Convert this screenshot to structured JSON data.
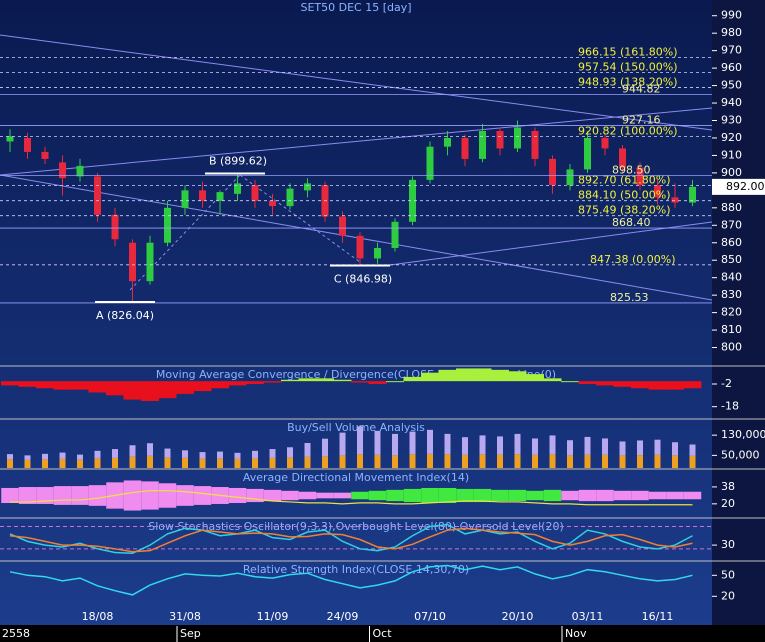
{
  "chart_data": [
    {
      "type": "candlestick",
      "title": "SET50 DEC 15   [day]",
      "categories": [
        "2558",
        null,
        null,
        null,
        null,
        "18/08",
        null,
        null,
        null,
        null,
        "31/08",
        null,
        null,
        null,
        null,
        "11/09",
        null,
        null,
        null,
        "24/09",
        null,
        null,
        null,
        null,
        "07/10",
        null,
        null,
        null,
        null,
        "20/10",
        null,
        null,
        null,
        "03/11",
        null,
        null,
        null,
        "16/11",
        null,
        null
      ],
      "months": [
        null,
        null,
        null,
        null,
        null,
        null,
        null,
        null,
        null,
        null,
        "Sep",
        null,
        null,
        null,
        null,
        null,
        null,
        null,
        null,
        null,
        null,
        "Oct",
        null,
        null,
        null,
        null,
        null,
        null,
        null,
        null,
        null,
        null,
        "Nov",
        null,
        null,
        null,
        null,
        null,
        null,
        null
      ],
      "open": [
        918,
        920,
        912,
        906,
        898,
        898,
        876,
        860,
        838,
        860,
        880,
        890,
        884,
        888,
        893,
        884,
        881,
        890,
        893,
        875,
        864,
        851,
        857,
        872,
        896,
        915,
        920,
        908,
        924,
        914,
        924,
        908,
        893,
        902,
        920,
        914,
        903,
        893,
        886,
        883
      ],
      "high": [
        925,
        923,
        915,
        910,
        908,
        900,
        880,
        862,
        864,
        884,
        893,
        895,
        890,
        900,
        896,
        888,
        894,
        897,
        895,
        878,
        866,
        860,
        874,
        898,
        918,
        924,
        922,
        928,
        926,
        930,
        926,
        910,
        905,
        924,
        922,
        916,
        906,
        896,
        894,
        896
      ],
      "low": [
        912,
        908,
        905,
        887,
        895,
        872,
        858,
        826,
        836,
        858,
        876,
        880,
        876,
        884,
        880,
        876,
        879,
        886,
        872,
        860,
        847,
        848,
        855,
        870,
        894,
        910,
        904,
        906,
        910,
        912,
        904,
        888,
        890,
        900,
        910,
        900,
        890,
        882,
        880,
        881
      ],
      "close": [
        921,
        912,
        908,
        897,
        904,
        876,
        862,
        838,
        860,
        880,
        890,
        884,
        889,
        894,
        884,
        881,
        891,
        894,
        875,
        864,
        851,
        857,
        872,
        896,
        915,
        920,
        908,
        924,
        914,
        926,
        908,
        893,
        902,
        920,
        914,
        903,
        893,
        886,
        883,
        892
      ],
      "up_color": "#2ecc40",
      "down_color": "#e8283c",
      "ylim": [
        790,
        999
      ],
      "yticks": [
        800,
        810,
        820,
        830,
        840,
        850,
        860,
        870,
        880,
        890,
        900,
        910,
        920,
        930,
        940,
        950,
        960,
        970,
        980,
        990
      ],
      "fibonacci": [
        {
          "value": 966.15,
          "label": "966.15 (161.80%)"
        },
        {
          "value": 957.54,
          "label": "957.54 (150.00%)"
        },
        {
          "value": 948.93,
          "label": "948.93 (138.20%)"
        },
        {
          "value": 920.82,
          "label": "920.82 (100.00%)"
        },
        {
          "value": 892.7,
          "label": "892.70 (61.80%)"
        },
        {
          "value": 884.1,
          "label": "884.10 (50.00%)"
        },
        {
          "value": 875.49,
          "label": "875.49 (38.20%)"
        },
        {
          "value": 847.38,
          "label": "847.38 (0.00%)"
        }
      ],
      "lines": [
        {
          "value": 944.82,
          "label": "944.82"
        },
        {
          "value": 927.16,
          "label": "927.16"
        },
        {
          "value": 898.5,
          "label": "898.50"
        },
        {
          "value": 868.4,
          "label": "868.40"
        },
        {
          "value": 825.53,
          "label": "825.53"
        }
      ],
      "pivots": [
        {
          "value": 826.04,
          "label": "A (826.04)"
        },
        {
          "value": 899.62,
          "label": "B (899.62)"
        },
        {
          "value": 846.98,
          "label": "C (846.98)"
        }
      ],
      "last_price": {
        "value": 892,
        "label": "892.00"
      }
    },
    {
      "type": "bar",
      "title": "Moving Average Convergence / Divergence(CLOSE,26,12,9),Base Line(0)",
      "values": [
        -3,
        -4,
        -5,
        -6,
        -6,
        -8,
        -10,
        -13,
        -14,
        -12,
        -9,
        -7,
        -5,
        -3,
        -2,
        -1,
        1,
        2,
        2,
        1,
        -1,
        -2,
        0,
        3,
        6,
        8,
        9,
        9,
        8,
        7,
        5,
        2,
        0,
        -2,
        -3,
        -4,
        -5,
        -6,
        -6,
        -5
      ],
      "colors": [
        "#a8f03c",
        "#e8101c"
      ],
      "ylim": [
        -26,
        10
      ],
      "yticks": [
        -2,
        -18
      ]
    },
    {
      "type": "stacked_bar",
      "title": "Buy/Sell Volume Analysis",
      "series": [
        {
          "color": "#f0a020",
          "values": [
            35000,
            32000,
            34000,
            36000,
            33000,
            38000,
            40000,
            45000,
            48000,
            42000,
            40000,
            38000,
            37000,
            36000,
            38000,
            40000,
            42000,
            44000,
            46000,
            50000,
            55000,
            52000,
            50000,
            54000,
            56000,
            55000,
            52000,
            54000,
            53000,
            55000,
            52000,
            54000,
            50000,
            53000,
            52000,
            50000,
            51000,
            52000,
            50000,
            48000
          ]
        },
        {
          "color": "#b8a8f0",
          "values": [
            20000,
            18000,
            22000,
            25000,
            20000,
            30000,
            35000,
            45000,
            50000,
            35000,
            30000,
            25000,
            28000,
            24000,
            30000,
            35000,
            40000,
            55000,
            70000,
            90000,
            110000,
            95000,
            85000,
            90000,
            95000,
            80000,
            70000,
            75000,
            72000,
            80000,
            65000,
            75000,
            60000,
            70000,
            65000,
            55000,
            58000,
            60000,
            52000,
            45000
          ]
        }
      ],
      "ylim": [
        0,
        190000
      ],
      "yticks": [
        {
          "value": 130000,
          "label": "130,000"
        },
        {
          "value": 50000,
          "label": "50,000"
        }
      ]
    },
    {
      "type": "adx",
      "title": "Average Directional Movement Index(14)",
      "values": [
        22,
        22,
        23,
        24,
        24,
        26,
        29,
        32,
        34,
        34,
        33,
        31,
        29,
        27,
        25,
        23,
        22,
        21,
        21,
        20,
        21,
        21,
        20,
        20,
        21,
        22,
        23,
        23,
        22,
        22,
        21,
        20,
        20,
        19,
        19,
        19,
        19,
        19,
        19,
        19
      ],
      "spread": [
        8,
        9,
        9,
        10,
        10,
        11,
        14,
        16,
        15,
        13,
        11,
        10,
        9,
        8,
        7,
        6,
        5,
        4,
        3,
        3,
        -4,
        -5,
        -6,
        -7,
        -8,
        -8,
        -7,
        -7,
        -6,
        -6,
        -5,
        -6,
        5,
        6,
        6,
        5,
        5,
        4,
        4,
        4
      ],
      "color": "#f0e040",
      "spread_colors": [
        "#f08cf0",
        "#40e840"
      ],
      "ylim": [
        6,
        56
      ],
      "yticks": [
        38,
        20
      ]
    },
    {
      "type": "line",
      "title": "Slow Stochastics Oscillator(9,3,3),Overbought Level(80),Oversold Level(20)",
      "series": [
        {
          "color": "#30d0e0",
          "values": [
            60,
            40,
            30,
            25,
            35,
            20,
            10,
            8,
            30,
            60,
            75,
            70,
            55,
            60,
            70,
            50,
            45,
            65,
            70,
            40,
            20,
            15,
            25,
            55,
            80,
            85,
            60,
            70,
            60,
            65,
            40,
            20,
            35,
            70,
            60,
            40,
            25,
            20,
            30,
            55
          ]
        },
        {
          "color": "#f08030",
          "values": [
            55,
            50,
            40,
            30,
            30,
            27,
            20,
            12,
            15,
            35,
            55,
            70,
            65,
            60,
            62,
            60,
            52,
            53,
            60,
            58,
            45,
            25,
            20,
            32,
            52,
            70,
            75,
            70,
            65,
            62,
            58,
            40,
            30,
            40,
            55,
            58,
            45,
            30,
            25,
            35
          ]
        }
      ],
      "levels": [
        80,
        20
      ],
      "ylim": [
        -10,
        100
      ],
      "yticks": [
        30
      ]
    },
    {
      "type": "line",
      "title": "Relative Strength Index(CLOSE,14,30,70)",
      "series": [
        {
          "color": "#30d8f0",
          "values": [
            55,
            50,
            48,
            42,
            46,
            35,
            28,
            22,
            36,
            45,
            52,
            50,
            49,
            53,
            48,
            46,
            51,
            53,
            44,
            38,
            32,
            36,
            42,
            55,
            62,
            64,
            58,
            63,
            58,
            62,
            52,
            45,
            50,
            58,
            55,
            50,
            45,
            42,
            44,
            50
          ]
        }
      ],
      "ylim": [
        -21,
        69
      ],
      "yticks": [
        50,
        20
      ]
    }
  ]
}
